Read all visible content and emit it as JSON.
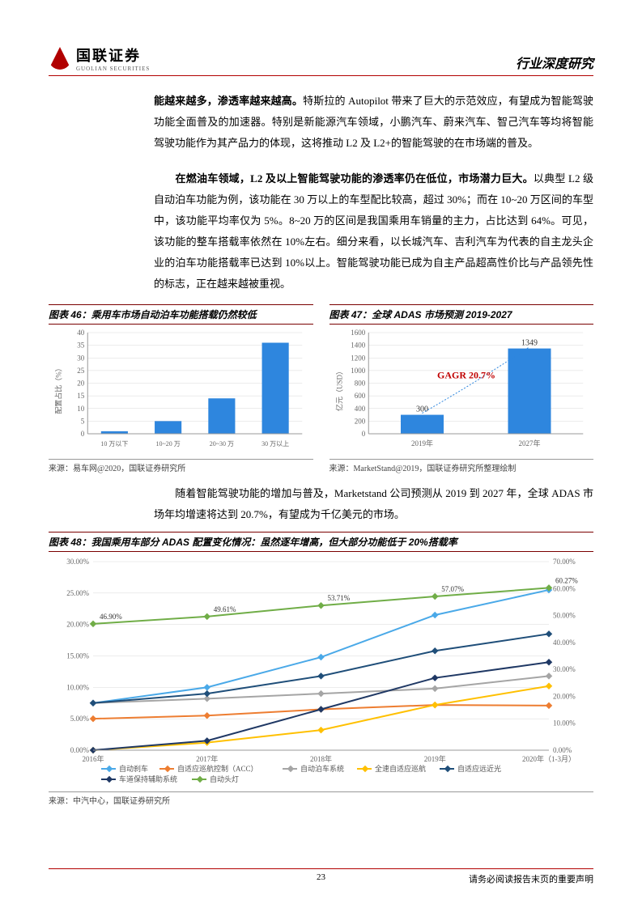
{
  "header": {
    "logo_cn": "国联证券",
    "logo_en": "GUOLIAN SECURITIES",
    "title": "行业深度研究"
  },
  "paragraphs": {
    "p1_bold": "能越来越多，渗透率越来越高。",
    "p1_rest": "特斯拉的 Autopilot 带来了巨大的示范效应，有望成为智能驾驶功能全面普及的加速器。特别是新能源汽车领域，小鹏汽车、蔚来汽车、智己汽车等均将智能驾驶功能作为其产品力的体现，这将推动 L2 及 L2+的智能驾驶的在市场端的普及。",
    "p2_bold": "在燃油车领域，L2 及以上智能驾驶功能的渗透率仍在低位，市场潜力巨大。",
    "p2_rest": "以典型 L2 级自动泊车功能为例，该功能在 30 万以上的车型配比较高，超过 30%；而在 10~20 万区间的车型中，该功能平均率仅为 5%。8~20 万的区间是我国乘用车销量的主力，占比达到 64%。可见，该功能的整车搭载率依然在 10%左右。细分来看，以长城汽车、吉利汽车为代表的自主龙头企业的泊车功能搭载率已达到 10%以上。智能驾驶功能已成为自主产品超高性价比与产品领先性的标志，正在越来越被重视。",
    "p3": "随着智能驾驶功能的增加与普及，Marketstand 公司预测从 2019 到 2027 年，全球 ADAS 市场年均增速将达到 20.7%，有望成为千亿美元的市场。"
  },
  "chart46": {
    "title": "图表 46：乘用车市场自动泊车功能搭载仍然较低",
    "type": "bar",
    "categories": [
      "10 万以下",
      "10~20 万",
      "20~30 万",
      "30 万以上"
    ],
    "values": [
      1,
      5,
      14,
      36
    ],
    "ylabel": "配置占比（%）",
    "ylim": [
      0,
      40
    ],
    "ytick_step": 5,
    "bar_color": "#2e86de",
    "grid_color": "#d9d9d9",
    "source": "来源：易车网@2020，国联证券研究所"
  },
  "chart47": {
    "title": "图表 47：全球 ADAS 市场预测 2019-2027",
    "type": "bar",
    "categories": [
      "2019年",
      "2027年"
    ],
    "values": [
      300,
      1349
    ],
    "value_labels": [
      "300",
      "1349"
    ],
    "ylabel": "亿元（USD）",
    "ylim": [
      0,
      1600
    ],
    "ytick_step": 200,
    "bar_color": "#2e86de",
    "grid_color": "#d9d9d9",
    "annotation": "GAGR 20.7%",
    "annotation_color": "#c00000",
    "source": "来源：MarketStand@2019，国联证券研究所整理绘制"
  },
  "chart48": {
    "title": "图表 48：我国乘用车部分 ADAS 配置变化情况：虽然逐年增高，但大部分功能低于 20%搭载率",
    "type": "line",
    "x_categories": [
      "2016年",
      "2017年",
      "2018年",
      "2019年",
      "2020年（1-3月）"
    ],
    "y_left": {
      "ylim": [
        0,
        30
      ],
      "ytick_step": 5,
      "format": "pct"
    },
    "y_right": {
      "ylim": [
        0,
        70
      ],
      "ytick_step": 10,
      "format": "pct"
    },
    "grid_color": "#d9d9d9",
    "series": [
      {
        "name": "自动刹车",
        "color": "#4aa9e8",
        "axis": "left",
        "values": [
          7.5,
          10.0,
          14.8,
          21.5,
          25.5
        ]
      },
      {
        "name": "自适应巡航控制（ACC）",
        "color": "#ed7d31",
        "axis": "left",
        "values": [
          5.0,
          5.5,
          6.5,
          7.2,
          7.1
        ]
      },
      {
        "name": "自动泊车系统",
        "color": "#a5a5a5",
        "axis": "left",
        "values": [
          7.5,
          8.2,
          9.0,
          9.8,
          11.8
        ]
      },
      {
        "name": "全速自适应巡航",
        "color": "#ffc000",
        "axis": "left",
        "values": [
          0.0,
          1.2,
          3.2,
          7.2,
          10.2
        ]
      },
      {
        "name": "自适应远近光",
        "color": "#1f4e79",
        "axis": "left",
        "values": [
          7.5,
          9.0,
          11.8,
          15.8,
          18.5
        ]
      },
      {
        "name": "车道保持辅助系统",
        "color": "#1f3864",
        "axis": "left",
        "values": [
          0.0,
          1.5,
          6.5,
          11.5,
          14.0
        ]
      },
      {
        "name": "自动头灯",
        "color": "#70ad47",
        "axis": "right",
        "values": [
          46.9,
          49.61,
          53.71,
          57.07,
          60.27
        ]
      }
    ],
    "data_labels_right": [
      "46.90%",
      "49.61%",
      "53.71%",
      "57.07%",
      "60.27%"
    ],
    "source": "来源：中汽中心，国联证券研究所"
  },
  "footer": {
    "page": "23",
    "disclaimer": "请务必阅读报告末页的重要声明"
  }
}
